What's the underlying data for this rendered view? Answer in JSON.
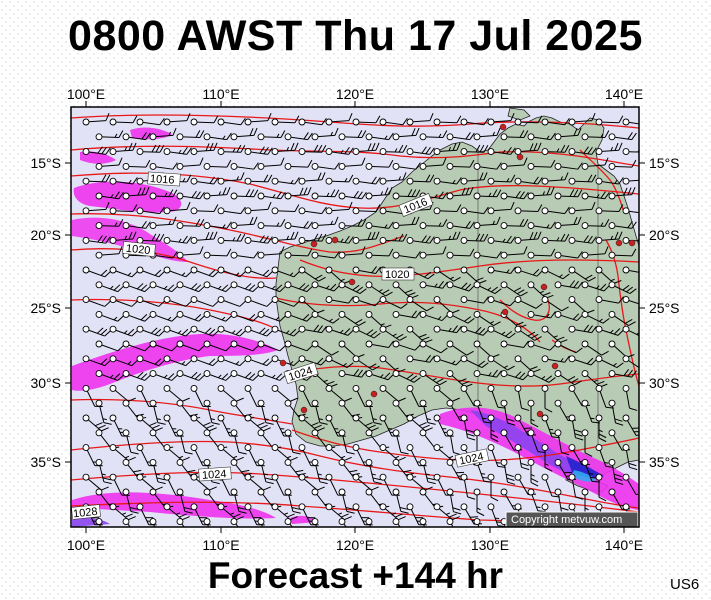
{
  "header": {
    "title": "0800 AWST Thu 17 Jul 2025"
  },
  "footer": {
    "forecast_label": "Forecast +144 hr",
    "model_code": "US6"
  },
  "map": {
    "lon_labels": [
      "100°E",
      "110°E",
      "120°E",
      "130°E",
      "140°E"
    ],
    "lat_labels": [
      "15°S",
      "20°S",
      "25°S",
      "30°S",
      "35°S"
    ],
    "isobar_labels": [
      "1016",
      "1016",
      "1020",
      "1020",
      "1024",
      "1024",
      "1024",
      "1028"
    ],
    "copyright": "Copyright metvuw.com",
    "colors": {
      "ocean": "#e2e2f6",
      "land": "#b8cbb4",
      "isobar": "#e81818",
      "precip_light": "#ee33ee",
      "precip_medium": "#8a44ee",
      "precip_heavy": "#2222cc"
    }
  }
}
